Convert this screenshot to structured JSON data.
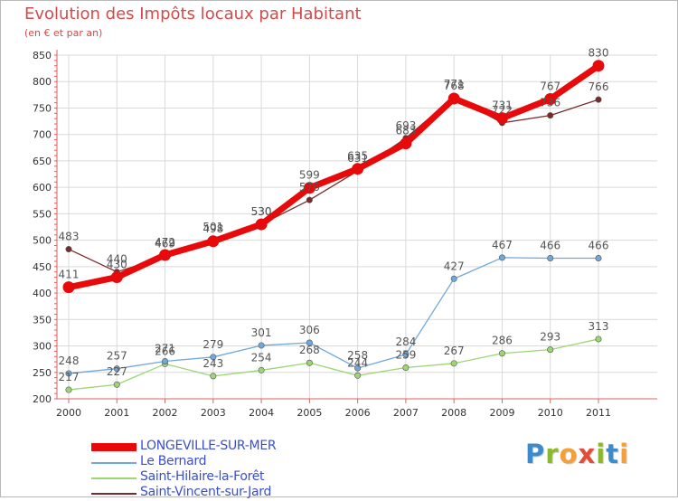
{
  "chart_data": {
    "type": "line",
    "title": "Evolution des Impôts locaux par Habitant",
    "subtitle": "(en € et par an)",
    "xlabel": "",
    "ylabel": "",
    "categories": [
      "2000",
      "2001",
      "2002",
      "2003",
      "2004",
      "2005",
      "2006",
      "2007",
      "2008",
      "2009",
      "2010",
      "2011"
    ],
    "ylim": [
      200,
      850
    ],
    "yticks": [
      200,
      250,
      300,
      350,
      400,
      450,
      500,
      550,
      600,
      650,
      700,
      750,
      800,
      850
    ],
    "series": [
      {
        "name": "LONGEVILLE-SUR-MER",
        "color": "#e8090a",
        "values": [
          411,
          430,
          472,
          498,
          530,
          599,
          635,
          683,
          768,
          731,
          767,
          830
        ],
        "labels": [
          "411",
          "430",
          "472",
          "498",
          "530",
          "599",
          "635",
          "683",
          "768",
          "731",
          "767",
          "830"
        ]
      },
      {
        "name": "Le Bernard",
        "color": "#6fa8dc",
        "values": [
          248,
          257,
          271,
          279,
          301,
          306,
          258,
          284,
          427,
          467,
          466,
          466
        ],
        "labels": [
          "248",
          "257",
          "271",
          "279",
          "301",
          "306",
          "258",
          "284",
          "427",
          "467",
          "466",
          "466"
        ]
      },
      {
        "name": "Saint-Hilaire-la-Forêt",
        "color": "#9bd672",
        "values": [
          217,
          227,
          266,
          243,
          254,
          268,
          244,
          259,
          267,
          286,
          293,
          313
        ],
        "labels": [
          "217",
          "227",
          "266",
          "243",
          "254",
          "268",
          "244",
          "259",
          "267",
          "286",
          "293",
          "313"
        ]
      },
      {
        "name": "Saint-Vincent-sur-Jard",
        "color": "#7a2a2a",
        "values": [
          483,
          440,
          469,
          501,
          530,
          576,
          631,
          693,
          771,
          722,
          736,
          766
        ],
        "labels": [
          "483",
          "440",
          "469",
          "501",
          "530",
          "576",
          "631",
          "693",
          "771",
          "722",
          "736",
          "766"
        ]
      }
    ]
  },
  "legend": {
    "items": [
      "LONGEVILLE-SUR-MER",
      "Le Bernard",
      "Saint-Hilaire-la-Forêt",
      "Saint-Vincent-sur-Jard"
    ]
  },
  "logo": {
    "text": "Proxiti"
  }
}
